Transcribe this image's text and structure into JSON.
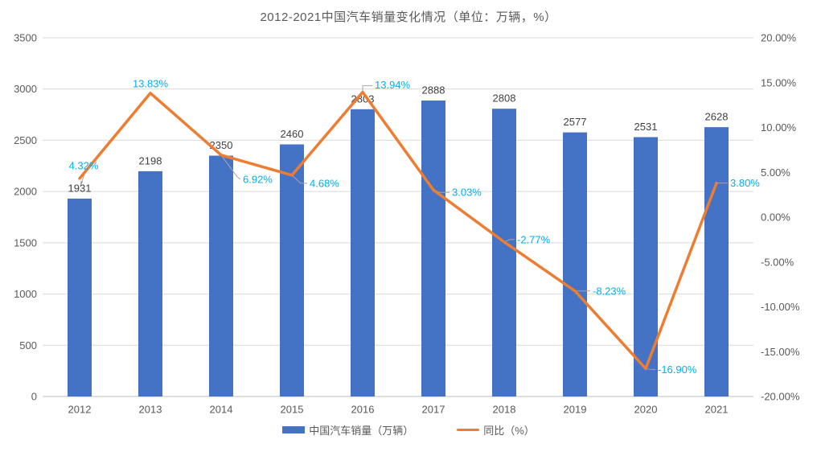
{
  "title": "2012-2021中国汽车销量变化情况（单位：万辆，%）",
  "legend": {
    "bars": "中国汽车销量（万辆）",
    "line": "同比（%）"
  },
  "colors": {
    "bar": "#4472C4",
    "line": "#ED7D31",
    "pct_label": "#00B0F0",
    "bar_label": "#404040",
    "axis_text": "#595959",
    "grid": "#D9D9D9",
    "baseline": "#BFBFBF",
    "leader": "#A6A6A6",
    "background": "#FFFFFF"
  },
  "chart_data": {
    "type": "combo-bar-line",
    "title": "2012-2021中国汽车销量变化情况（单位：万辆，%）",
    "categories": [
      "2012",
      "2013",
      "2014",
      "2015",
      "2016",
      "2017",
      "2018",
      "2019",
      "2020",
      "2021"
    ],
    "series": [
      {
        "name": "中国汽车销量（万辆）",
        "type": "bar",
        "axis": "left",
        "values": [
          1931,
          2198,
          2350,
          2460,
          2803,
          2888,
          2808,
          2577,
          2531,
          2628
        ],
        "labels": [
          "1931",
          "2198",
          "2350",
          "2460",
          "2803",
          "2888",
          "2808",
          "2577",
          "2531",
          "2628"
        ]
      },
      {
        "name": "同比（%）",
        "type": "line",
        "axis": "right",
        "values": [
          4.32,
          13.83,
          6.92,
          4.68,
          13.94,
          3.03,
          -2.77,
          -8.23,
          -16.9,
          3.8
        ],
        "labels": [
          "4.32%",
          "13.83%",
          "6.92%",
          "4.68%",
          "13.94%",
          "3.03%",
          "-2.77%",
          "-8.23%",
          "-16.90%",
          "3.80%"
        ]
      }
    ],
    "left_axis": {
      "min": 0,
      "max": 3500,
      "step": 500,
      "ticks": [
        "3500",
        "3000",
        "2500",
        "2000",
        "1500",
        "1000",
        "500",
        "0"
      ]
    },
    "right_axis": {
      "min": -20,
      "max": 20,
      "step": 5,
      "ticks": [
        "20.00%",
        "15.00%",
        "10.00%",
        "5.00%",
        "0.00%",
        "-5.00%",
        "-10.00%",
        "-15.00%",
        "-20.00%"
      ]
    },
    "grid": "horizontal",
    "legend_position": "bottom"
  }
}
